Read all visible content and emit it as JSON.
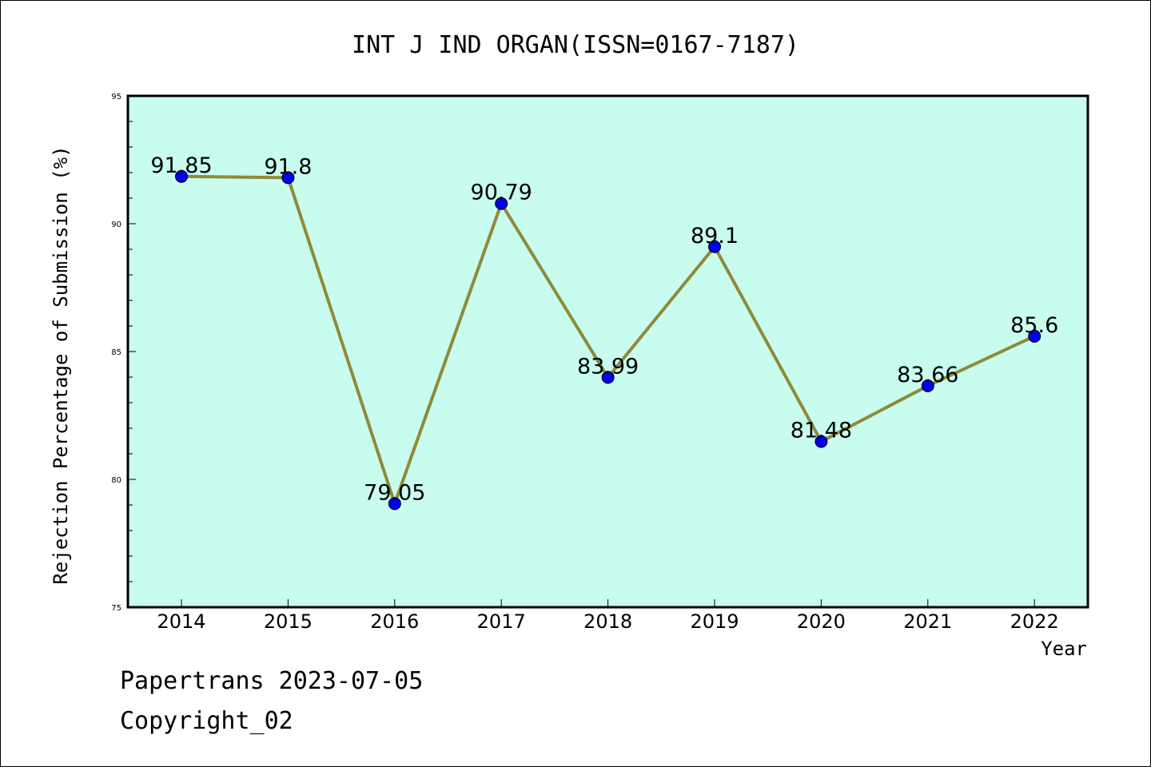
{
  "chart_data": {
    "type": "line",
    "title": "INT J IND ORGAN(ISSN=0167-7187)",
    "xlabel": "Year",
    "ylabel": "Rejection Percentage of Submission (%)",
    "categories": [
      "2014",
      "2015",
      "2016",
      "2017",
      "2018",
      "2019",
      "2020",
      "2021",
      "2022"
    ],
    "values": [
      91.85,
      91.8,
      79.05,
      90.79,
      83.99,
      89.1,
      81.48,
      83.66,
      85.6
    ],
    "data_labels": [
      "91.85",
      "91.8",
      "79.05",
      "90.79",
      "83.99",
      "89.1",
      "81.48",
      "83.66",
      "85.6"
    ],
    "ylim": [
      75,
      95
    ],
    "yticks": [
      "75",
      "80",
      "85",
      "90",
      "95"
    ],
    "grid": false,
    "colors": {
      "plot_background": "#c8fcee",
      "line": "#8f8a3a",
      "marker": "#0000ee"
    }
  },
  "footer": {
    "line1": "Papertrans 2023-07-05",
    "line2": "Copyright_02"
  }
}
